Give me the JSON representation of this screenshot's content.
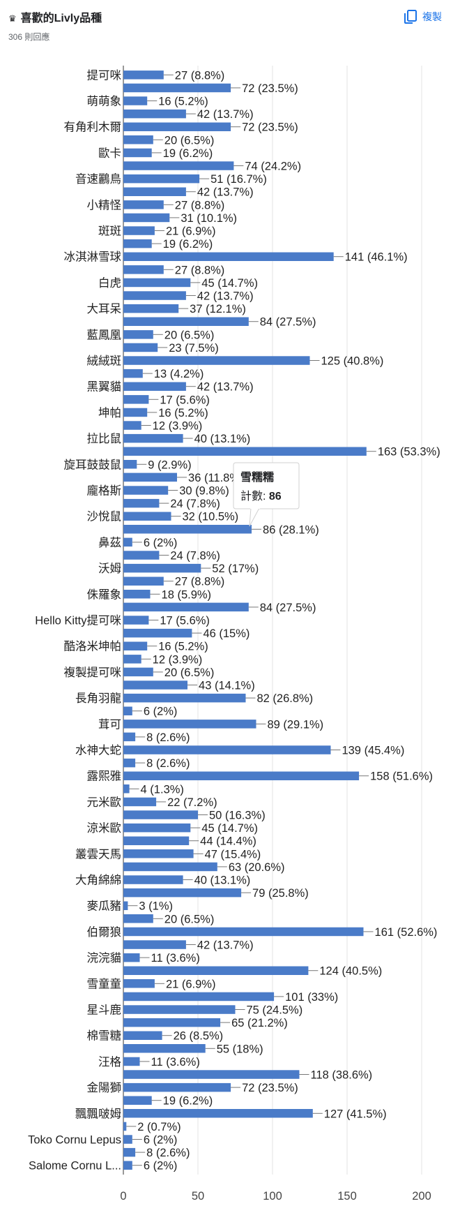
{
  "header": {
    "title": "喜歡的Livly品種",
    "title_icon": "crown-icon",
    "responses": "306 則回應",
    "copy_label": "複製",
    "copy_icon": "copy-icon",
    "accent": "#1a73e8"
  },
  "tooltip": {
    "title": "雪糯糯",
    "label": "計數",
    "value": "86"
  },
  "chart_data": {
    "type": "bar",
    "orientation": "horizontal",
    "bar_color": "#4a7bc8",
    "xlim": [
      0,
      200
    ],
    "xticks": [
      0,
      50,
      100,
      150,
      200
    ],
    "grid": true,
    "legend": "none",
    "categories": [
      "提可咪",
      "",
      "萌萌象",
      "",
      "有角利木爾",
      "",
      "歐卡",
      "",
      "音速鸝鳥",
      "",
      "小精怪",
      "",
      "斑斑",
      "",
      "冰淇淋雪球",
      "",
      "白虎",
      "",
      "大耳呆",
      "",
      "藍鳳凰",
      "",
      "絨絨斑",
      "",
      "黑翼貓",
      "",
      "坤帕",
      "",
      "拉比鼠",
      "",
      "旋耳鼓鼓鼠",
      "",
      "龐格斯",
      "",
      "沙悅鼠",
      "",
      "鼻茲",
      "",
      "沃姆",
      "",
      "侏羅象",
      "",
      "Hello Kitty提可咪",
      "",
      "酷洛米坤帕",
      "",
      "複製提可咪",
      "",
      "長角羽龍",
      "",
      "茸可",
      "",
      "水神大蛇",
      "",
      "露熙雅",
      "",
      "元米歐",
      "",
      "涼米歐",
      "",
      "叢雲天馬",
      "",
      "大角綿綿",
      "",
      "麥瓜豬",
      "",
      "伯爾狼",
      "",
      "浣浣貓",
      "",
      "雪童童",
      "",
      "星斗鹿",
      "",
      "棉雪糖",
      "",
      "汪格",
      "",
      "金陽獅",
      "",
      "飄飄啵姆",
      "",
      "Toko Cornu Lepus",
      "",
      "Salome Cornu L..."
    ],
    "values": [
      27,
      72,
      16,
      42,
      72,
      20,
      19,
      74,
      51,
      42,
      27,
      31,
      21,
      19,
      141,
      27,
      45,
      42,
      37,
      84,
      20,
      23,
      125,
      13,
      42,
      17,
      16,
      12,
      40,
      163,
      9,
      36,
      30,
      24,
      32,
      86,
      6,
      24,
      52,
      27,
      18,
      84,
      17,
      46,
      16,
      12,
      20,
      43,
      82,
      6,
      89,
      8,
      139,
      8,
      158,
      4,
      22,
      50,
      45,
      44,
      47,
      63,
      40,
      79,
      3,
      20,
      161,
      42,
      11,
      124,
      21,
      101,
      75,
      65,
      26,
      55,
      11,
      118,
      72,
      19,
      127,
      2,
      6,
      8,
      6
    ],
    "data_labels": [
      "27 (8.8%)",
      "72 (23.5%)",
      "16 (5.2%)",
      "42 (13.7%)",
      "72 (23.5%)",
      "20 (6.5%)",
      "19 (6.2%)",
      "74 (24.2%)",
      "51 (16.7%)",
      "42 (13.7%)",
      "27 (8.8%)",
      "31 (10.1%)",
      "21 (6.9%)",
      "19 (6.2%)",
      "141 (46.1%)",
      "27 (8.8%)",
      "45 (14.7%)",
      "42 (13.7%)",
      "37 (12.1%)",
      "84 (27.5%)",
      "20 (6.5%)",
      "23 (7.5%)",
      "125 (40.8%)",
      "13 (4.2%)",
      "42 (13.7%)",
      "17 (5.6%)",
      "16 (5.2%)",
      "12 (3.9%)",
      "40 (13.1%)",
      "163 (53.3%)",
      "9 (2.9%)",
      "36 (11.8%)",
      "30 (9.8%)",
      "24 (7.8%)",
      "32 (10.5%)",
      "86 (28.1%)",
      "6 (2%)",
      "24 (7.8%)",
      "52 (17%)",
      "27 (8.8%)",
      "18 (5.9%)",
      "84 (27.5%)",
      "17 (5.6%)",
      "46 (15%)",
      "16 (5.2%)",
      "12 (3.9%)",
      "20 (6.5%)",
      "43 (14.1%)",
      "82 (26.8%)",
      "6 (2%)",
      "89 (29.1%)",
      "8 (2.6%)",
      "139 (45.4%)",
      "8 (2.6%)",
      "158 (51.6%)",
      "4 (1.3%)",
      "22 (7.2%)",
      "50 (16.3%)",
      "45 (14.7%)",
      "44 (14.4%)",
      "47 (15.4%)",
      "63 (20.6%)",
      "40 (13.1%)",
      "79 (25.8%)",
      "3 (1%)",
      "20 (6.5%)",
      "161 (52.6%)",
      "42 (13.7%)",
      "11 (3.6%)",
      "124 (40.5%)",
      "21 (6.9%)",
      "101 (33%)",
      "75 (24.5%)",
      "65 (21.2%)",
      "26 (8.5%)",
      "55 (18%)",
      "11 (3.6%)",
      "118 (38.6%)",
      "72 (23.5%)",
      "19 (6.2%)",
      "127 (41.5%)",
      "2 (0.7%)",
      "6 (2%)",
      "8 (2.6%)",
      "6 (2%)"
    ],
    "highlighted_index": 35
  }
}
